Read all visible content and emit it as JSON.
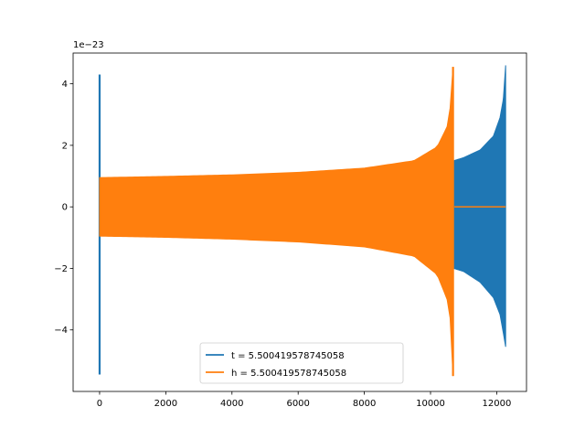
{
  "chart_data": {
    "type": "line",
    "title": "",
    "xlabel": "",
    "ylabel": "",
    "offset_text": "1e−23",
    "xlim": [
      -800,
      12900
    ],
    "ylim": [
      -6.0,
      5.0
    ],
    "x_ticks": [
      0,
      2000,
      4000,
      6000,
      8000,
      10000,
      12000
    ],
    "x_tick_labels": [
      "0",
      "2000",
      "4000",
      "6000",
      "8000",
      "10000",
      "12000"
    ],
    "y_ticks": [
      -4,
      -2,
      0,
      2,
      4
    ],
    "y_tick_labels": [
      "−4",
      "−2",
      "0",
      "2",
      "4"
    ],
    "grid": false,
    "legend_position": "lower-center",
    "series": [
      {
        "name": "t = 5.500419578745058",
        "color": "#1f77b4",
        "spike": {
          "x": 0,
          "max": 4.3,
          "min": -5.45
        },
        "start_x": 0,
        "end_x": 12270,
        "envelope": [
          {
            "x": 10700,
            "upper": 1.5,
            "lower": -2.0
          },
          {
            "x": 11000,
            "upper": 1.6,
            "lower": -2.1
          },
          {
            "x": 11500,
            "upper": 1.85,
            "lower": -2.45
          },
          {
            "x": 11900,
            "upper": 2.3,
            "lower": -2.95
          },
          {
            "x": 12100,
            "upper": 2.9,
            "lower": -3.5
          },
          {
            "x": 12200,
            "upper": 3.5,
            "lower": -4.1
          },
          {
            "x": 12270,
            "upper": 4.6,
            "lower": -4.55
          }
        ]
      },
      {
        "name": "h = 5.500419578745058",
        "color": "#ff7f0e",
        "spike": {
          "x": 10680,
          "max": 4.55,
          "min": -5.5
        },
        "start_x": 0,
        "end_x": 12270,
        "flat_after": 10720,
        "envelope": [
          {
            "x": 0,
            "upper": 0.95,
            "lower": -0.95
          },
          {
            "x": 2000,
            "upper": 0.99,
            "lower": -0.99
          },
          {
            "x": 4000,
            "upper": 1.04,
            "lower": -1.05
          },
          {
            "x": 6000,
            "upper": 1.12,
            "lower": -1.14
          },
          {
            "x": 8000,
            "upper": 1.26,
            "lower": -1.3
          },
          {
            "x": 9500,
            "upper": 1.5,
            "lower": -1.6
          },
          {
            "x": 10200,
            "upper": 1.95,
            "lower": -2.2
          },
          {
            "x": 10500,
            "upper": 2.6,
            "lower": -3.0
          },
          {
            "x": 10620,
            "upper": 3.4,
            "lower": -3.8
          },
          {
            "x": 10680,
            "upper": 4.55,
            "lower": -5.5
          }
        ]
      }
    ]
  }
}
